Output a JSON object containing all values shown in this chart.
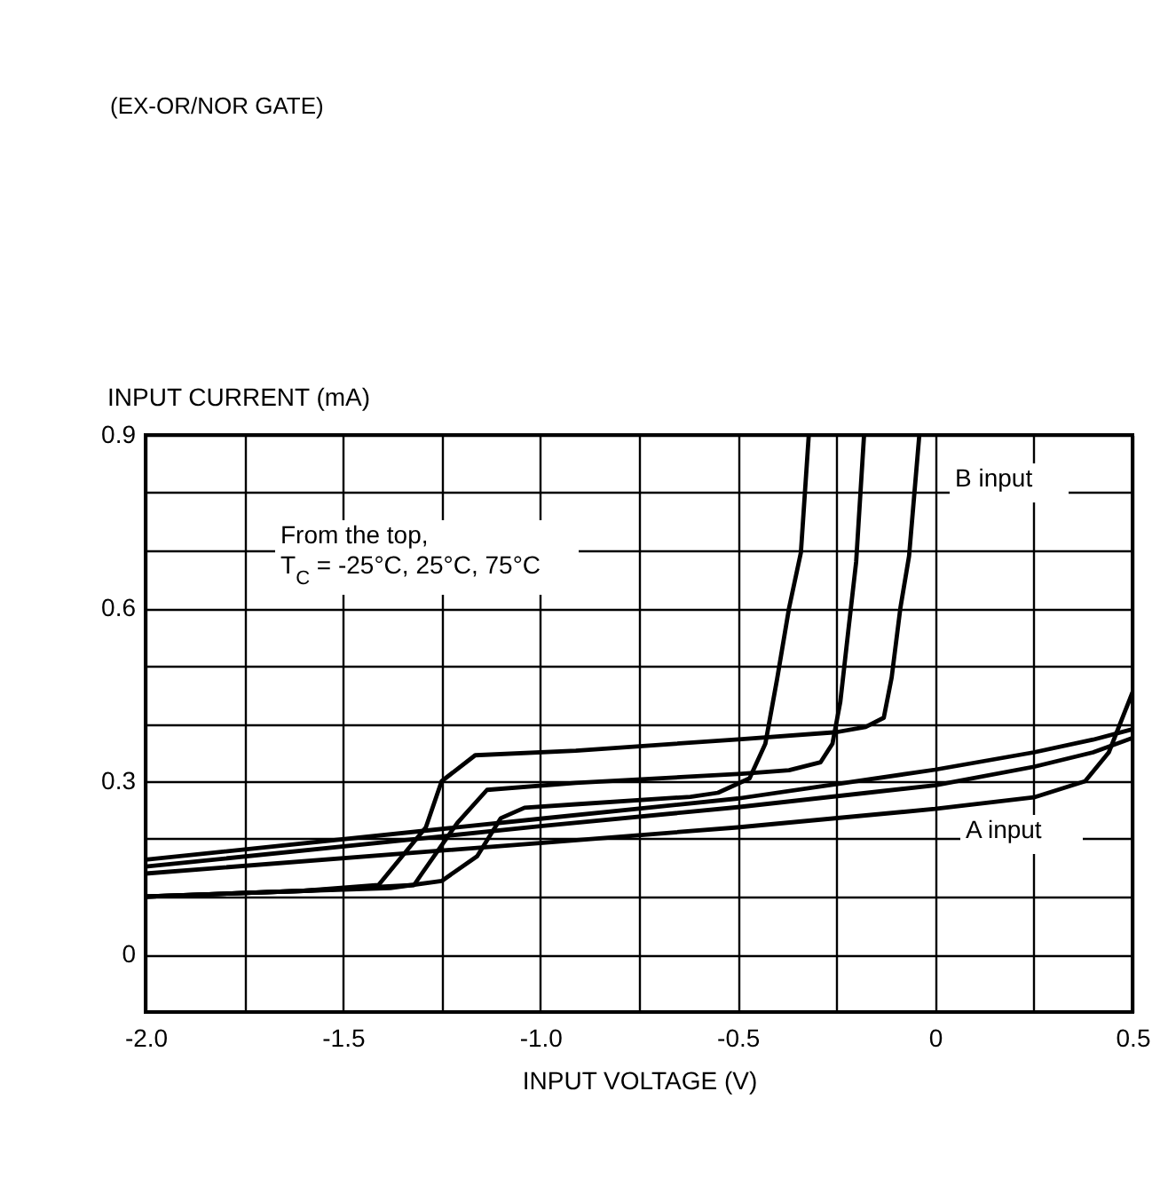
{
  "chart_data": {
    "type": "line",
    "title": "(EX-OR/NOR GATE)",
    "xlabel": "INPUT VOLTAGE (V)",
    "ylabel": "INPUT CURRENT (mA)",
    "xlim": [
      -2,
      0.5
    ],
    "ylim": [
      -0.1,
      0.9
    ],
    "xticks": [
      {
        "value": -2,
        "label": "-2.0"
      },
      {
        "value": -1.75,
        "label": null
      },
      -1.5,
      {
        "value": -1.25,
        "label": null
      },
      {
        "value": -1,
        "label": "-1.0"
      },
      {
        "value": -0.75,
        "label": null
      },
      -0.5,
      {
        "value": -0.25,
        "label": null
      },
      0,
      {
        "value": 0.25,
        "label": null
      },
      0.5
    ],
    "yticks": [
      0,
      {
        "value": 0.1,
        "label": null
      },
      {
        "value": 0.2,
        "label": null
      },
      0.3,
      {
        "value": 0.4,
        "label": null
      },
      {
        "value": 0.5,
        "label": null
      },
      0.6,
      {
        "value": 0.7,
        "label": null
      },
      {
        "value": 0.8,
        "label": null
      },
      0.9
    ],
    "grid": true,
    "line_style": "solid",
    "annotations": [
      "From the top,\nT$_{C}$ = -25°C, 25°C, 75°C",
      "B input",
      "A input"
    ],
    "series": [
      {
        "color": "#000000",
        "x": [
          -2,
          -1.6,
          -1.41,
          -1.29,
          -1.25,
          -1.165,
          -0.91,
          -0.49,
          -0.25,
          -0.176,
          -0.13,
          -0.11,
          -0.088,
          -0.066,
          -0.04
        ],
        "values": [
          0.1,
          0.11,
          0.12,
          0.22,
          0.3,
          0.345,
          0.353,
          0.373,
          0.385,
          0.394,
          0.41,
          0.48,
          0.6,
          0.69,
          0.9
        ]
      },
      {
        "color": "#000000",
        "x": [
          -2,
          -1.6,
          -1.32,
          -1.3,
          -1.21,
          -1.135,
          -0.91,
          -0.49,
          -0.37,
          -0.29,
          -0.26,
          -0.24,
          -0.22,
          -0.2,
          -0.18
        ],
        "values": [
          0.1,
          0.11,
          0.12,
          0.14,
          0.228,
          0.285,
          0.297,
          0.313,
          0.319,
          0.333,
          0.365,
          0.438,
          0.56,
          0.68,
          0.9
        ]
      },
      {
        "color": "#000000",
        "x": [
          -2,
          -1.6,
          -1.38,
          -1.25,
          -1.16,
          -1.1,
          -1.04,
          -0.91,
          -0.62,
          -0.55,
          -0.47,
          -0.43,
          -0.4,
          -0.37,
          -0.34,
          -0.32
        ],
        "values": [
          0.1,
          0.11,
          0.115,
          0.127,
          0.17,
          0.236,
          0.254,
          0.26,
          0.273,
          0.28,
          0.305,
          0.365,
          0.478,
          0.6,
          0.696,
          0.9
        ]
      },
      {
        "color": "#000000",
        "x": [
          -2,
          -1,
          -0.5,
          0,
          0.25,
          0.4,
          0.5
        ],
        "values": [
          0.164,
          0.235,
          0.27,
          0.32,
          0.35,
          0.372,
          0.39
        ]
      },
      {
        "color": "#000000",
        "x": [
          -2,
          -1,
          -0.5,
          0,
          0.25,
          0.4,
          0.5
        ],
        "values": [
          0.152,
          0.222,
          0.255,
          0.293,
          0.325,
          0.35,
          0.375
        ]
      },
      {
        "color": "#000000",
        "x": [
          -2,
          -1,
          -0.5,
          0,
          0.25,
          0.38,
          0.44,
          0.5
        ],
        "values": [
          0.14,
          0.193,
          0.22,
          0.252,
          0.272,
          0.3,
          0.35,
          0.454
        ]
      }
    ]
  }
}
